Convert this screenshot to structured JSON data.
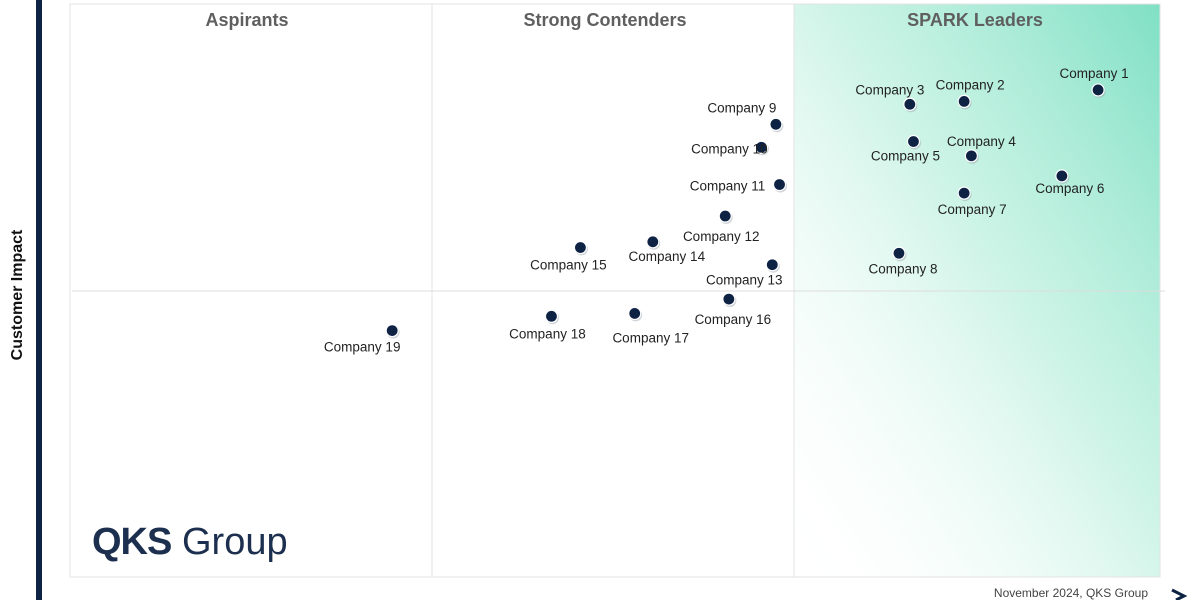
{
  "chart_data": {
    "type": "scatter",
    "title": "",
    "xlabel": "",
    "ylabel": "Customer Impact",
    "xlim": [
      0,
      3
    ],
    "ylim": [
      0,
      2
    ],
    "quadrants": [
      "Aspirants",
      "Strong Contenders",
      "SPARK Leaders"
    ],
    "points": [
      {
        "label": "Company 1",
        "x": 2.84,
        "y": 1.7
      },
      {
        "label": "Company 2",
        "x": 2.47,
        "y": 1.66
      },
      {
        "label": "Company 3",
        "x": 2.32,
        "y": 1.65
      },
      {
        "label": "Company 4",
        "x": 2.49,
        "y": 1.47
      },
      {
        "label": "Company 5",
        "x": 2.33,
        "y": 1.52
      },
      {
        "label": "Company 6",
        "x": 2.74,
        "y": 1.4
      },
      {
        "label": "Company 7",
        "x": 2.47,
        "y": 1.34
      },
      {
        "label": "Company 8",
        "x": 2.29,
        "y": 1.13
      },
      {
        "label": "Company 9",
        "x": 1.95,
        "y": 1.58
      },
      {
        "label": "Company 10",
        "x": 1.91,
        "y": 1.5
      },
      {
        "label": "Company 11",
        "x": 1.96,
        "y": 1.37
      },
      {
        "label": "Company 12",
        "x": 1.81,
        "y": 1.26
      },
      {
        "label": "Company 13",
        "x": 1.94,
        "y": 1.09
      },
      {
        "label": "Company 14",
        "x": 1.61,
        "y": 1.17
      },
      {
        "label": "Company 15",
        "x": 1.41,
        "y": 1.15
      },
      {
        "label": "Company 16",
        "x": 1.82,
        "y": 0.97
      },
      {
        "label": "Company 17",
        "x": 1.56,
        "y": 0.92
      },
      {
        "label": "Company 18",
        "x": 1.33,
        "y": 0.91
      },
      {
        "label": "Company 19",
        "x": 0.89,
        "y": 0.86
      }
    ]
  },
  "branding": {
    "logo_primary": "QKS",
    "logo_secondary": "Group",
    "footer_note": "November 2024, QKS Group"
  },
  "colors": {
    "point": "#0e2244",
    "leader_gradient": "#7fe0c4",
    "gridline": "#e3e3e3",
    "left_bar": "#0e2244",
    "logo": "#1d2f4f"
  }
}
